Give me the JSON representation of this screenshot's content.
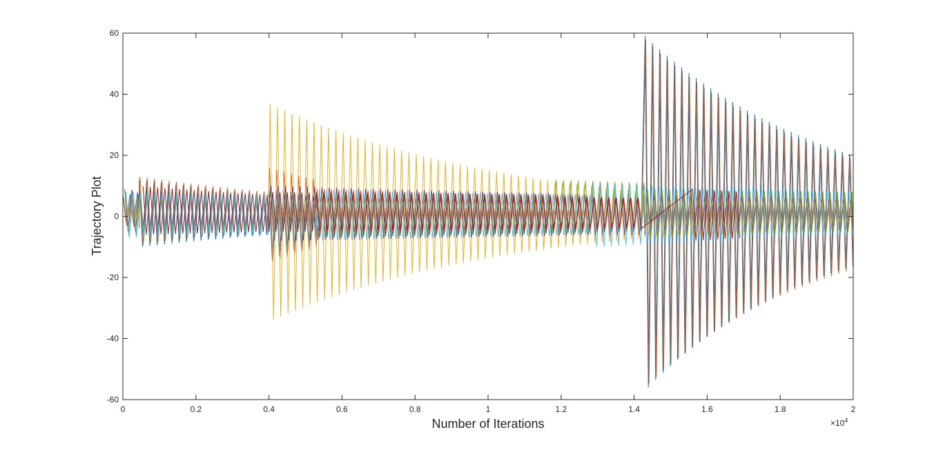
{
  "chart_data": {
    "type": "line",
    "title": "",
    "xlabel": "Number of Iterations",
    "ylabel": "Trajectory Plot",
    "xlim": [
      0,
      20000
    ],
    "ylim": [
      -60,
      60
    ],
    "x_exponent_label": "×10",
    "x_exponent_power": "4",
    "x_tick_values": [
      0,
      2000,
      4000,
      6000,
      8000,
      10000,
      12000,
      14000,
      16000,
      18000,
      20000
    ],
    "x_tick_labels": [
      "0",
      "0.2",
      "0.4",
      "0.6",
      "0.8",
      "1",
      "1.2",
      "1.4",
      "1.6",
      "1.8",
      "2"
    ],
    "y_tick_values": [
      -60,
      -40,
      -20,
      0,
      20,
      40,
      60
    ],
    "y_tick_labels": [
      "-60",
      "-40",
      "-20",
      "0",
      "20",
      "40",
      "60"
    ],
    "grid": false,
    "legend": "none",
    "oscillation_period": 200,
    "series": [
      {
        "color": "#0072BD",
        "segments": [
          {
            "x": [
              0,
              450
            ],
            "upper": [
              7,
              8
            ],
            "lower": [
              -2,
              -3
            ]
          },
          {
            "x": [
              450,
              4000
            ],
            "upper": [
              12,
              7
            ],
            "lower": [
              -10,
              -6
            ]
          },
          {
            "x": [
              4000,
              5300
            ],
            "upper": [
              9,
              7
            ],
            "lower": [
              -14,
              -9
            ]
          },
          {
            "x": [
              5300,
              14300
            ],
            "upper": [
              8,
              7
            ],
            "lower": [
              -7,
              -5
            ]
          },
          {
            "x": [
              14300,
              20000
            ],
            "upper": [
              59,
              20
            ],
            "lower": [
              -56,
              -16
            ]
          }
        ]
      },
      {
        "color": "#D95319",
        "segments": [
          {
            "x": [
              0,
              450
            ],
            "upper": [
              6,
              7
            ],
            "lower": [
              -3,
              -4
            ]
          },
          {
            "x": [
              450,
              4000
            ],
            "upper": [
              13,
              8
            ],
            "lower": [
              -9,
              -5
            ]
          },
          {
            "x": [
              4000,
              5300
            ],
            "upper": [
              16,
              12
            ],
            "lower": [
              -15,
              -10
            ]
          },
          {
            "x": [
              5300,
              14300
            ],
            "upper": [
              9,
              6
            ],
            "lower": [
              -6,
              -4
            ]
          },
          {
            "x": [
              14300,
              20000
            ],
            "upper": [
              58,
              19
            ],
            "lower": [
              -55,
              -17
            ]
          }
        ]
      },
      {
        "color": "#EDB120",
        "segments": [
          {
            "x": [
              0,
              450
            ],
            "upper": [
              5,
              6
            ],
            "lower": [
              -2,
              -3
            ]
          },
          {
            "x": [
              450,
              4000
            ],
            "upper": [
              10,
              6
            ],
            "lower": [
              -8,
              -5
            ]
          },
          {
            "x": [
              4000,
              14300
            ],
            "upper": [
              37,
              8
            ],
            "lower": [
              -34,
              -7
            ]
          },
          {
            "x": [
              14300,
              20000
            ],
            "upper": [
              8,
              6
            ],
            "lower": [
              -7,
              -5
            ]
          }
        ]
      },
      {
        "color": "#7E2F8E",
        "segments": [
          {
            "x": [
              0,
              4000
            ],
            "upper": [
              9,
              6
            ],
            "lower": [
              -5,
              -4
            ]
          },
          {
            "x": [
              4000,
              14300
            ],
            "upper": [
              10,
              7
            ],
            "lower": [
              -8,
              -6
            ]
          },
          {
            "x": [
              14300,
              20000
            ],
            "upper": [
              9,
              7
            ],
            "lower": [
              -6,
              -5
            ]
          }
        ]
      },
      {
        "color": "#77AC30",
        "segments": [
          {
            "x": [
              0,
              4000
            ],
            "upper": [
              8,
              7
            ],
            "lower": [
              -6,
              -5
            ]
          },
          {
            "x": [
              4000,
              11800
            ],
            "upper": [
              8,
              7
            ],
            "lower": [
              -7,
              -6
            ]
          },
          {
            "x": [
              11800,
              14300
            ],
            "upper": [
              12,
              11
            ],
            "lower": [
              -6,
              -5
            ]
          },
          {
            "x": [
              14300,
              20000
            ],
            "upper": [
              9,
              8
            ],
            "lower": [
              -7,
              -5
            ]
          }
        ]
      },
      {
        "color": "#4DBEEE",
        "segments": [
          {
            "x": [
              0,
              4000
            ],
            "upper": [
              8,
              7
            ],
            "lower": [
              -7,
              -6
            ]
          },
          {
            "x": [
              4000,
              5300
            ],
            "upper": [
              8,
              6
            ],
            "lower": [
              -6,
              -5
            ]
          },
          {
            "x": [
              5300,
              12800
            ],
            "upper": [
              9,
              7
            ],
            "lower": [
              -8,
              -6
            ]
          },
          {
            "x": [
              12800,
              16600
            ],
            "upper": [
              11,
              9
            ],
            "lower": [
              -10,
              -8
            ]
          },
          {
            "x": [
              16600,
              20000
            ],
            "upper": [
              10,
              8
            ],
            "lower": [
              -7,
              -6
            ]
          }
        ]
      },
      {
        "color": "#A2142F",
        "segments": [
          {
            "x": [
              450,
              4000
            ],
            "upper": [
              10,
              7
            ],
            "lower": [
              -6,
              -5
            ]
          },
          {
            "x": [
              4000,
              14300
            ],
            "upper": [
              8,
              6
            ],
            "lower": [
              -5,
              -4
            ]
          },
          {
            "x": [
              15500,
              17000
            ],
            "upper": [
              9,
              8
            ],
            "lower": [
              -8,
              -7
            ]
          }
        ]
      }
    ]
  }
}
